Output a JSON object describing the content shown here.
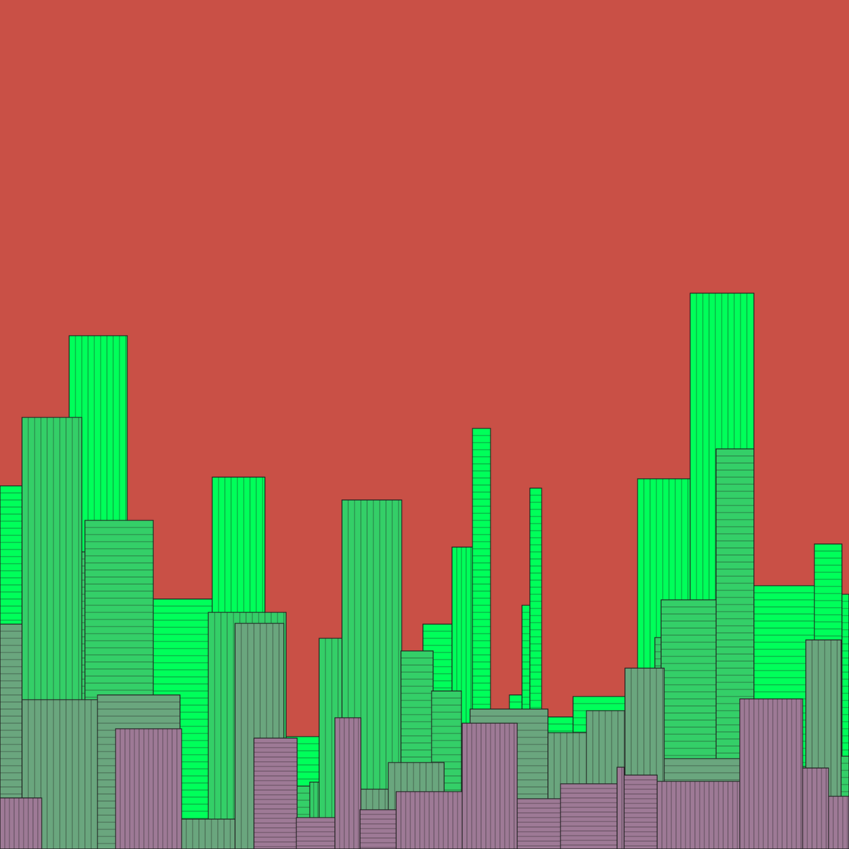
{
  "scene": {
    "title": "",
    "colors": {
      "sky": "#C95046",
      "layer_far": "#00FF5A",
      "layer_mid": "#34CF68",
      "layer_near": "#6AA67E",
      "layer_front": "#9E7A96",
      "outline": "#1F1F1F"
    }
  }
}
